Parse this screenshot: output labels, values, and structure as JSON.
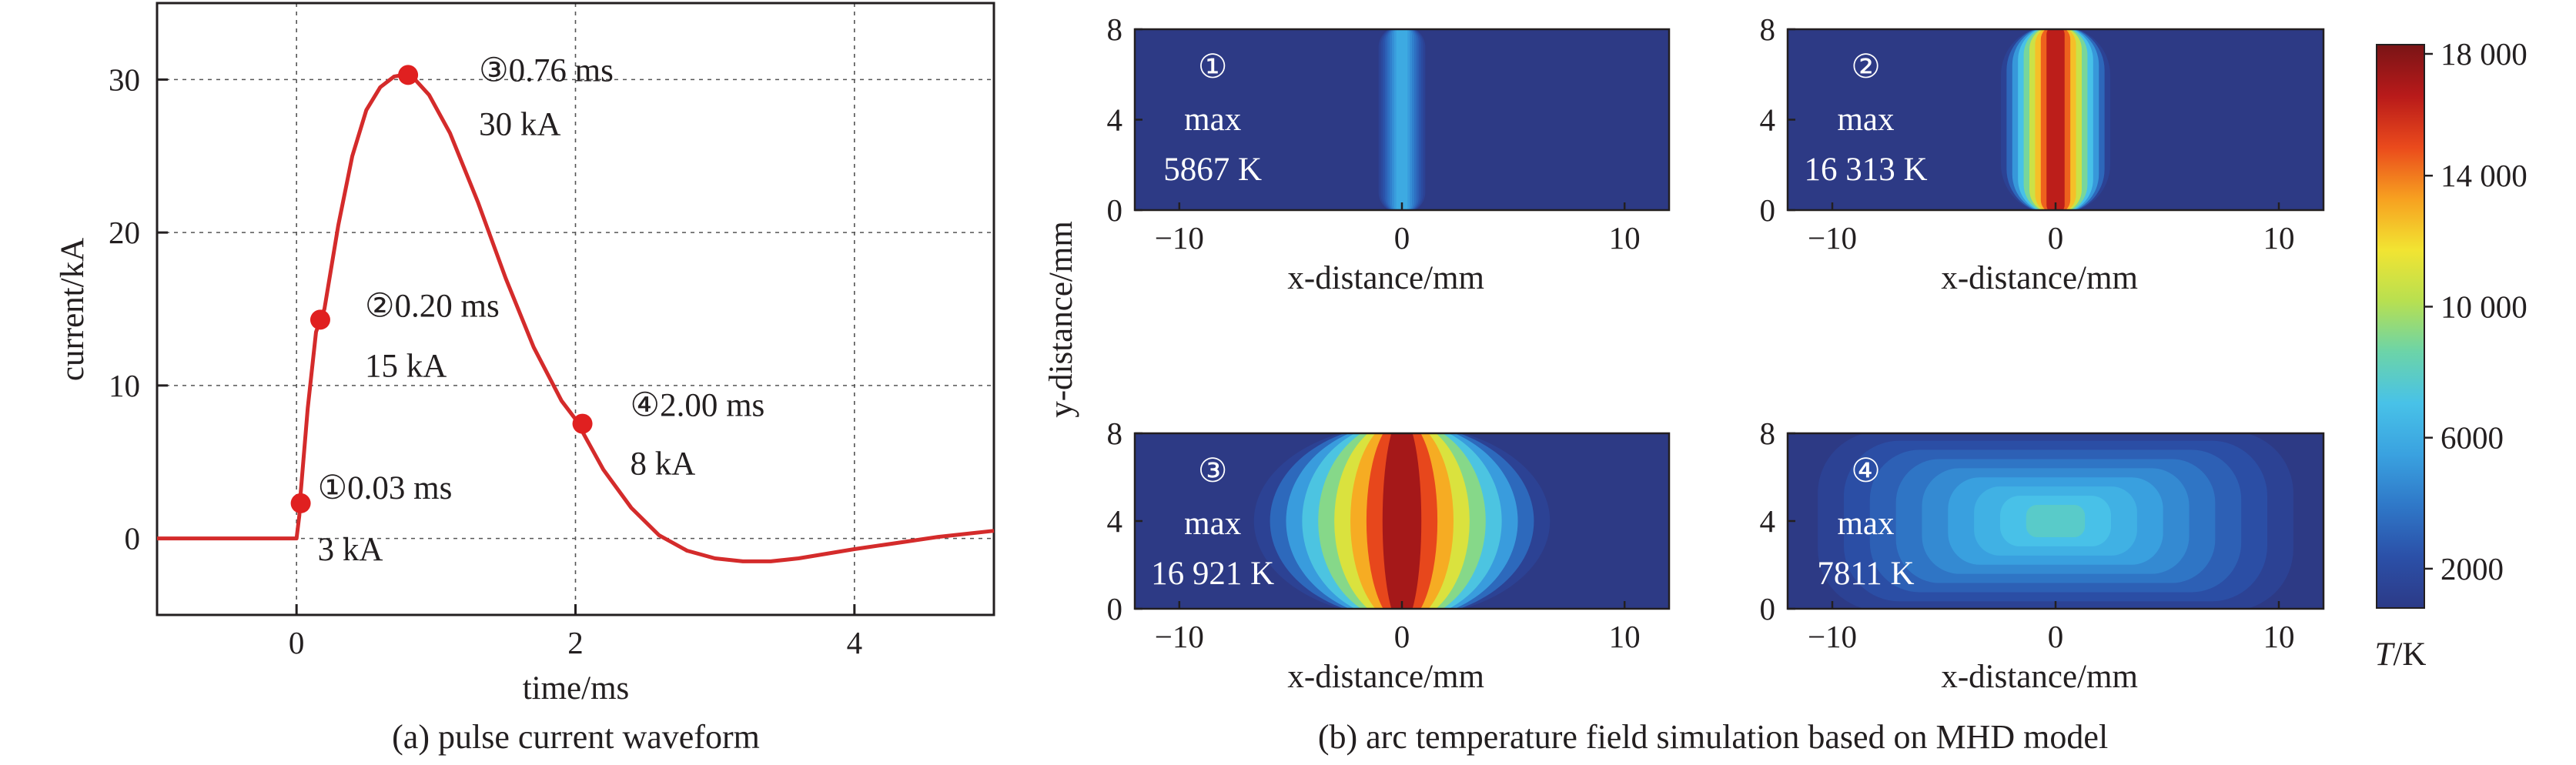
{
  "colors": {
    "waveform": "#d42b2b",
    "marker": "#e02020",
    "axis": "#231f20",
    "grid": "#555555",
    "background_field": "#2d3a85"
  },
  "chart_data": [
    {
      "type": "line",
      "panel": "a",
      "caption": "(a) pulse current waveform",
      "xlabel": "time/ms",
      "ylabel": "current/kA",
      "xlim": [
        -1,
        5
      ],
      "ylim": [
        -5,
        35
      ],
      "xticks": [
        "0",
        "2",
        "4"
      ],
      "xtick_values": [
        0,
        2,
        4
      ],
      "yticks": [
        "0",
        "10",
        "20",
        "30"
      ],
      "ytick_values": [
        0,
        10,
        20,
        30
      ],
      "grid": true,
      "series": [
        {
          "x": [
            -1,
            -0.5,
            0,
            0.02,
            0.03,
            0.08,
            0.14,
            0.2,
            0.3,
            0.4,
            0.5,
            0.6,
            0.7,
            0.76,
            0.85,
            0.95,
            1.1,
            1.3,
            1.5,
            1.7,
            1.9,
            2.0,
            2.2,
            2.4,
            2.6,
            2.8,
            3.0,
            3.2,
            3.4,
            3.6,
            3.8,
            4.0,
            4.3,
            4.6,
            5.0
          ],
          "y": [
            0,
            0,
            0,
            1.5,
            3,
            8.5,
            13.5,
            15,
            20.5,
            25,
            28,
            29.5,
            30.2,
            30.3,
            30,
            29,
            26.5,
            22,
            17,
            12.5,
            9,
            7.8,
            4.5,
            2,
            0.2,
            -0.8,
            -1.3,
            -1.5,
            -1.5,
            -1.3,
            -1,
            -0.7,
            -0.3,
            0.1,
            0.5
          ]
        }
      ],
      "markers": [
        {
          "num": "①",
          "time": "0.03 ms",
          "current": "3 kA",
          "x": 0.03,
          "y": 2.3
        },
        {
          "num": "②",
          "time": "0.20 ms",
          "current": "15 kA",
          "x": 0.17,
          "y": 14.3
        },
        {
          "num": "③",
          "time": "0.76 ms",
          "current": "30 kA",
          "x": 0.8,
          "y": 30.3
        },
        {
          "num": "④",
          "time": "2.00 ms",
          "current": "8 kA",
          "x": 2.05,
          "y": 7.5
        }
      ]
    },
    {
      "type": "heatmap",
      "panel": "b",
      "caption": "(b) arc temperature field simulation based on MHD model",
      "xlabel": "x-distance/mm",
      "ylabel": "y-distance/mm",
      "xlim": [
        -12,
        12
      ],
      "ylim": [
        0,
        8
      ],
      "xticks": [
        "−10",
        "0",
        "10"
      ],
      "xtick_values": [
        -10,
        0,
        10
      ],
      "yticks": [
        "0",
        "4",
        "8"
      ],
      "ytick_values": [
        0,
        4,
        8
      ],
      "colorbar": {
        "label": "T/K",
        "ticks": [
          "2000",
          "6000",
          "10 000",
          "14 000",
          "18 000"
        ],
        "tick_values": [
          2000,
          6000,
          10000,
          14000,
          18000
        ],
        "range": [
          800,
          18000
        ],
        "colors": [
          "#2c3a87",
          "#2b50a8",
          "#2f78c8",
          "#3aa2e0",
          "#48c2e8",
          "#6cd4a8",
          "#b8e050",
          "#f2e432",
          "#f7a020",
          "#ea4a1c",
          "#b81a1a",
          "#7a1416"
        ]
      },
      "fields": [
        {
          "num": "②",
          "max_label": "max",
          "max_value": "16 313 K",
          "peak_K": 16313,
          "half_width_mm": 2.3,
          "shape": "column"
        },
        {
          "num": "①",
          "max_label": "max",
          "max_value": "5867 K",
          "peak_K": 5867,
          "half_width_mm": 0.9,
          "shape": "column"
        },
        {
          "num": "③",
          "max_label": "max",
          "max_value": "16 921 K",
          "peak_K": 16921,
          "half_width_mm": 6.5,
          "shape": "bulge"
        },
        {
          "num": "④",
          "max_label": "max",
          "max_value": "7811 K",
          "peak_K": 7811,
          "half_width_mm": 10.5,
          "shape": "slab"
        }
      ]
    }
  ]
}
